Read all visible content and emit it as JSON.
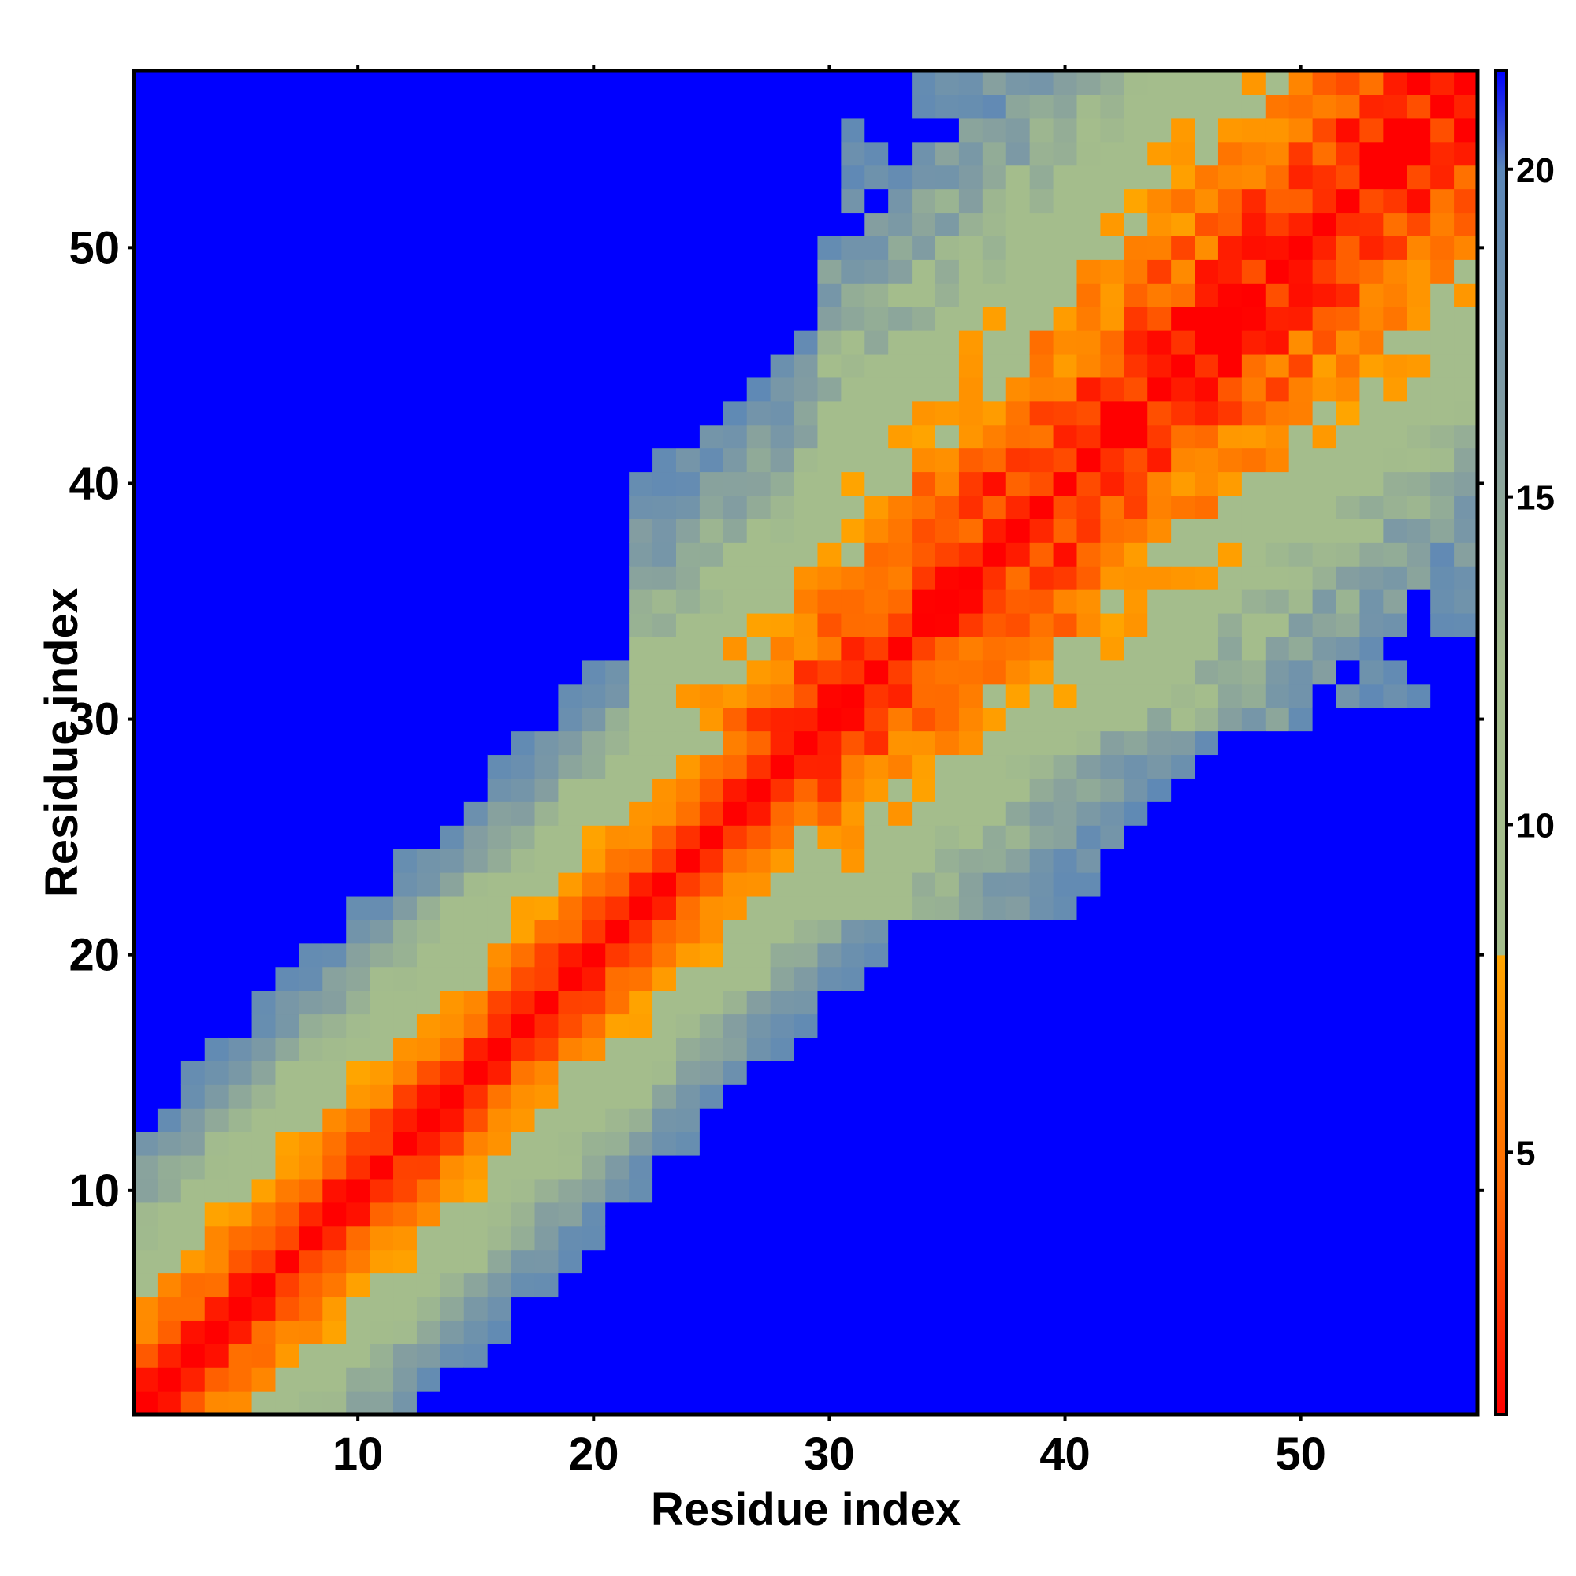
{
  "chart_data": {
    "type": "heatmap",
    "title": "",
    "xlabel": "Residue index",
    "ylabel": "Residue index",
    "n_residues": 57,
    "xlim": [
      0.5,
      57.5
    ],
    "ylim": [
      0.5,
      57.5
    ],
    "x_ticks": [
      10,
      20,
      30,
      40,
      50
    ],
    "y_ticks": [
      10,
      20,
      30,
      40,
      50
    ],
    "colorbar": {
      "range": [
        1,
        21.5
      ],
      "ticks": [
        5,
        10,
        15,
        20
      ],
      "stops": [
        {
          "value": 1,
          "color": "#ff0000"
        },
        {
          "value": 4.5,
          "color": "#ff6a00"
        },
        {
          "value": 8,
          "color": "#ffa500"
        },
        {
          "value": 8.01,
          "color": "#a4bd8c"
        },
        {
          "value": 12.5,
          "color": "#a4bd8c"
        },
        {
          "value": 16,
          "color": "#849ea0"
        },
        {
          "value": 20,
          "color": "#5a86b8"
        },
        {
          "value": 21.5,
          "color": "#0000ff"
        }
      ]
    },
    "grid": false,
    "description_of_matrix": "Symmetric residue-residue distance map (angstrom). Values grow with |i-j|; a diagonal red band (<4), orange/amber rim (~5-8), a sage band (~9-13), a blue-grey band (~14-19) and saturated blue (>20) far from the diagonal. A wider contact region appears around residues 30-57.",
    "model": {
      "near_diagonal_rate": 1.6,
      "wide_region_start": 30,
      "wide_region_rate": 2.6,
      "cap": 21.5
    }
  }
}
